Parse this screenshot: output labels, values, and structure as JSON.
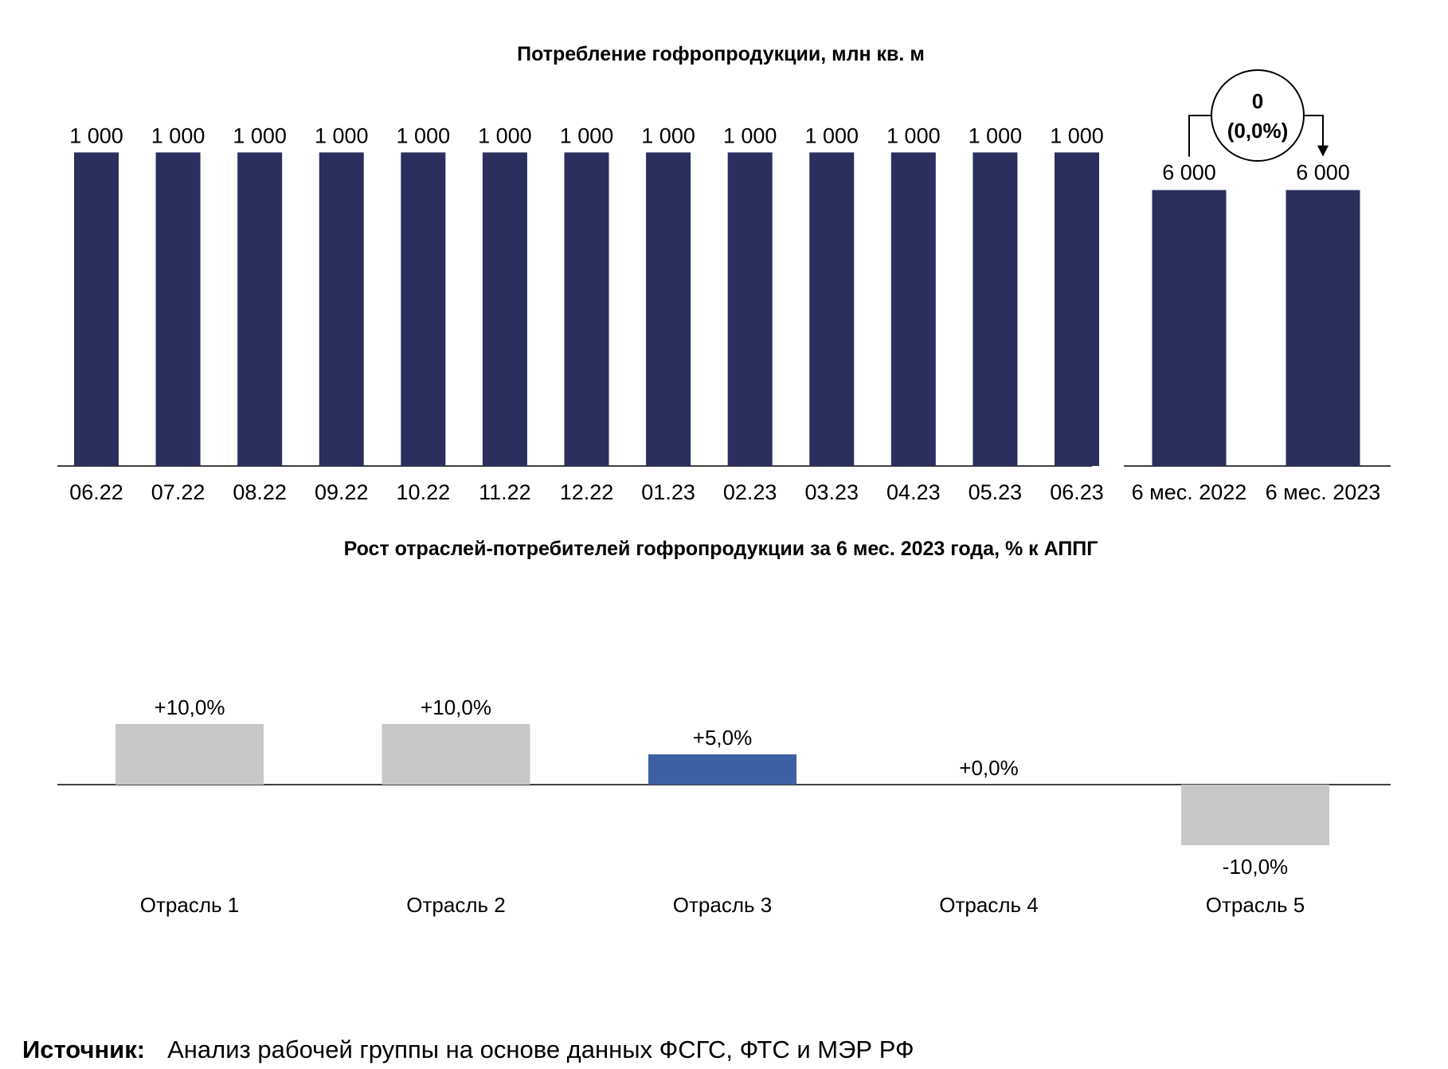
{
  "chart_data": [
    {
      "type": "bar",
      "title": "Потребление гофропродукции, млн кв. м",
      "categories": [
        "06.22",
        "07.22",
        "08.22",
        "09.22",
        "10.22",
        "11.22",
        "12.22",
        "01.23",
        "02.23",
        "03.23",
        "04.23",
        "05.23",
        "06.23"
      ],
      "values": [
        1000,
        1000,
        1000,
        1000,
        1000,
        1000,
        1000,
        1000,
        1000,
        1000,
        1000,
        1000,
        1000
      ],
      "value_labels": [
        "1 000",
        "1 000",
        "1 000",
        "1 000",
        "1 000",
        "1 000",
        "1 000",
        "1 000",
        "1 000",
        "1 000",
        "1 000",
        "1 000",
        "1 000"
      ],
      "ylim": [
        0,
        1100
      ],
      "grid": false,
      "colors": {
        "bar": "#2a2f5e"
      }
    },
    {
      "type": "bar",
      "categories": [
        "6 мес. 2022",
        "6 мес. 2023"
      ],
      "values": [
        6000,
        6000
      ],
      "value_labels": [
        "6 000",
        "6 000"
      ],
      "ylim": [
        0,
        7500
      ],
      "change": {
        "absolute": "0",
        "percent": "(0,0%)"
      },
      "colors": {
        "bar": "#2a2f5e"
      }
    },
    {
      "type": "bar",
      "title": "Рост отраслей-потребителей гофропродукции за 6 мес. 2023 года, % к АППГ",
      "categories": [
        "Отрасль 1",
        "Отрасль 2",
        "Отрасль 3",
        "Отрасль 4",
        "Отрасль 5"
      ],
      "values": [
        10.0,
        10.0,
        5.0,
        0.0,
        -10.0
      ],
      "value_labels": [
        "+10,0%",
        "+10,0%",
        "+5,0%",
        "+0,0%",
        "-10,0%"
      ],
      "highlight": "Отрасль 3",
      "ylim": [
        -10,
        10
      ],
      "grid": false,
      "colors": {
        "bar": "#c6c7c6",
        "highlight": "#3d5fa3"
      }
    }
  ],
  "source": {
    "label": "Источник:",
    "text": "Анализ рабочей группы на основе данных ФСГС, ФТС и МЭР РФ"
  }
}
